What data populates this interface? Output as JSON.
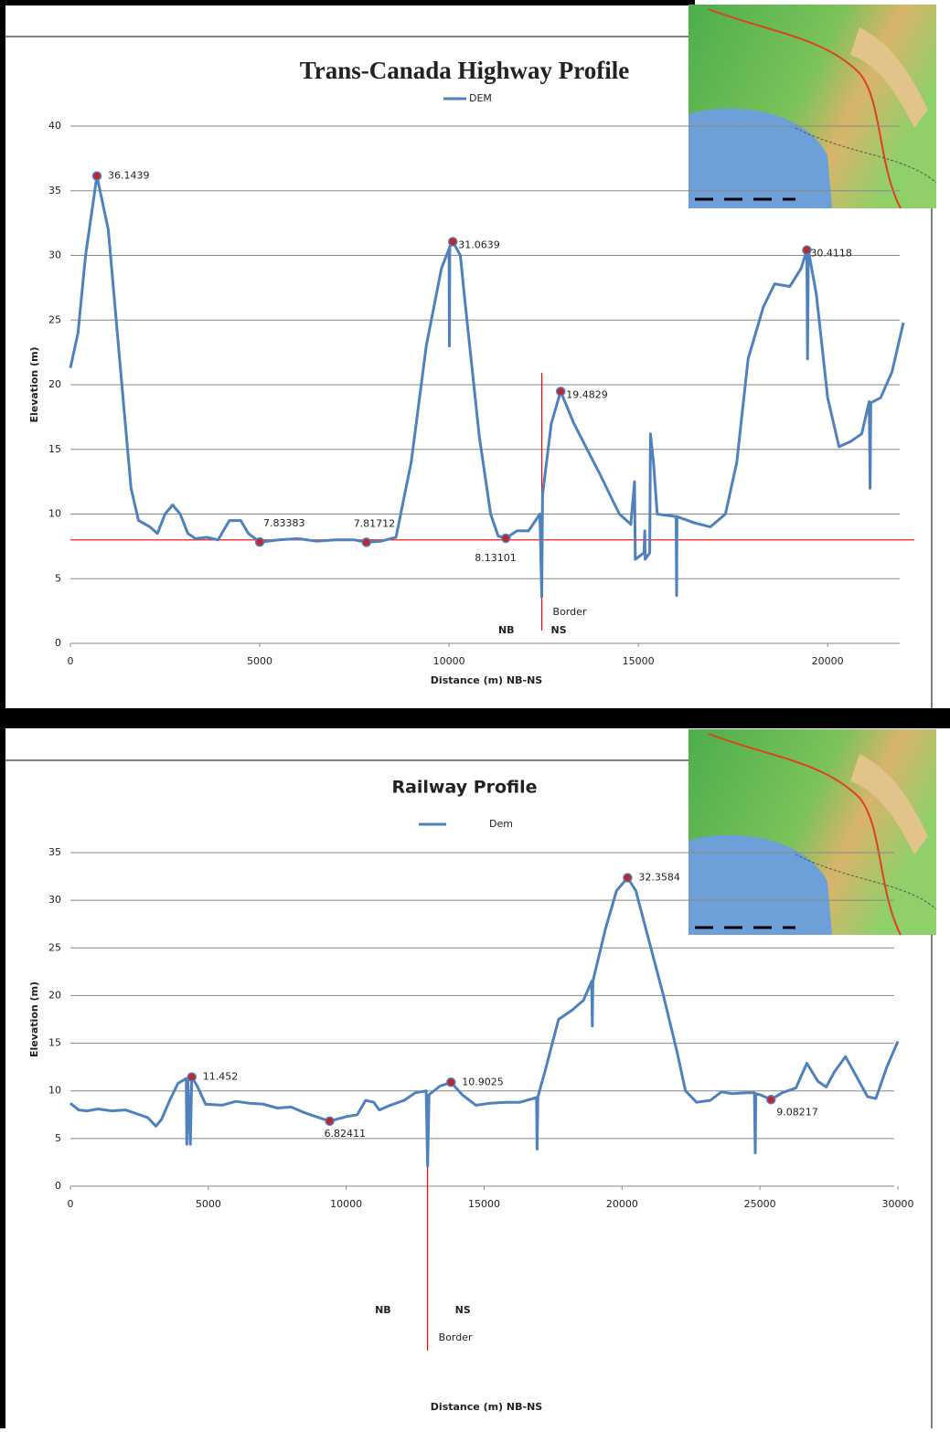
{
  "chart_data": [
    {
      "type": "line",
      "title": "Trans-Canada Highway Profile",
      "x_label": "Distance (m) NB-NS",
      "y_label": "Elevation (m)",
      "xlim": [
        0,
        22000
      ],
      "xticks": [
        0,
        5000,
        10000,
        15000,
        20000
      ],
      "ylim": [
        0,
        40
      ],
      "yticks": [
        0,
        5,
        10,
        15,
        20,
        25,
        30,
        35,
        40
      ],
      "grid": true,
      "x": [
        0,
        200,
        400,
        700,
        1000,
        1300,
        1600,
        1800,
        2100,
        2300,
        2500,
        2700,
        2900,
        3100,
        3300,
        3600,
        3900,
        4200,
        4500,
        4700,
        5000,
        5500,
        6000,
        6500,
        7000,
        7500,
        7817,
        8200,
        8600,
        9000,
        9400,
        9800,
        10000,
        10010,
        10020,
        10100,
        10300,
        10400,
        10800,
        11100,
        11300,
        11500,
        11800,
        12100,
        12400,
        12450,
        12470,
        12700,
        12950,
        13300,
        14000,
        14500,
        14800,
        14900,
        14920,
        15150,
        15170,
        15180,
        15300,
        15320,
        15400,
        15500,
        16000,
        16010,
        16020,
        16500,
        16900,
        17300,
        17600,
        17900,
        18300,
        18600,
        19000,
        19300,
        19450,
        19470,
        19490,
        19700,
        20000,
        20300,
        20600,
        20900,
        21100,
        21120,
        21140,
        21400,
        21700,
        22000
      ],
      "series": [
        {
          "name": "DEM",
          "color": "#4f81bd",
          "values": [
            21.3,
            24,
            30,
            36.1439,
            32,
            22,
            12,
            9.5,
            9,
            8.5,
            10,
            10.7,
            10,
            8.5,
            8.1,
            8.2,
            8.0,
            9.5,
            9.5,
            8.5,
            7.83383,
            8,
            8.1,
            7.9,
            8,
            8.0,
            7.81712,
            7.9,
            8.2,
            14,
            23,
            29,
            30.5,
            23,
            30.7,
            31.0639,
            30,
            27,
            16,
            10,
            8.3,
            8.13101,
            8.7,
            8.7,
            10,
            3.6,
            11.5,
            17,
            19.4829,
            17,
            13,
            10,
            9.2,
            12.5,
            6.5,
            7,
            8.7,
            6.5,
            7,
            16.2,
            14,
            10,
            9.8,
            3.7,
            9.8,
            9.3,
            9,
            10,
            14,
            22,
            26,
            27.8,
            27.6,
            29,
            30.4118,
            22,
            30.4,
            27,
            19,
            15.2,
            15.6,
            16.2,
            18.7,
            12,
            18.6,
            19,
            21,
            24.8
          ]
        }
      ],
      "points": [
        {
          "x": 700,
          "y": 36.1439
        },
        {
          "x": 10100,
          "y": 31.0639
        },
        {
          "x": 19450,
          "y": 30.4118
        },
        {
          "x": 12950,
          "y": 19.4829
        },
        {
          "x": 5000,
          "y": 7.83383
        },
        {
          "x": 7817,
          "y": 7.81712
        },
        {
          "x": 11500,
          "y": 8.13101
        }
      ],
      "reference_lines": [
        {
          "axis": "y",
          "value": 8,
          "color": "#ff0000"
        },
        {
          "axis": "x",
          "value": 12450,
          "color": "#ff0000",
          "label": "Border"
        }
      ],
      "side_labels": [
        "NB",
        "NS"
      ]
    },
    {
      "type": "line",
      "title": "Railway Profile",
      "x_label": "Distance (m) NB-NS",
      "y_label": "Elevation (m)",
      "xlim": [
        0,
        30000
      ],
      "xticks": [
        0,
        5000,
        10000,
        15000,
        20000,
        25000,
        30000
      ],
      "ylim": [
        0,
        35
      ],
      "yticks": [
        0,
        5,
        10,
        15,
        20,
        25,
        30,
        35
      ],
      "grid": true,
      "x": [
        0,
        300,
        600,
        1000,
        1500,
        2000,
        2400,
        2800,
        3100,
        3300,
        3600,
        3900,
        4200,
        4220,
        4260,
        4350,
        4400,
        4600,
        4900,
        5500,
        6000,
        6500,
        7000,
        7500,
        8000,
        8500,
        9000,
        9400,
        10000,
        10400,
        10700,
        11000,
        11200,
        11600,
        12100,
        12500,
        12900,
        12950,
        13000,
        13400,
        13800,
        14200,
        14700,
        15200,
        15800,
        16300,
        16900,
        16920,
        16950,
        17200,
        17700,
        18200,
        18600,
        18900,
        18920,
        18940,
        19400,
        19800,
        20200,
        20500,
        21000,
        21500,
        22000,
        22300,
        22700,
        23200,
        23600,
        24000,
        24500,
        24800,
        24830,
        24850,
        25000,
        25400,
        25800,
        26300,
        26700,
        27100,
        27400,
        27700,
        28100,
        28500,
        28900,
        29200,
        29600,
        30000
      ],
      "series": [
        {
          "name": "Dem",
          "color": "#4f81bd",
          "values": [
            8.7,
            8,
            7.9,
            8.1,
            7.9,
            8,
            7.6,
            7.2,
            6.3,
            7,
            9,
            10.8,
            11.3,
            4.4,
            11.2,
            4.4,
            11.452,
            10.5,
            8.6,
            8.5,
            8.9,
            8.7,
            8.6,
            8.2,
            8.3,
            7.7,
            7.2,
            6.82411,
            7.3,
            7.5,
            9,
            8.8,
            8,
            8.5,
            9,
            9.8,
            10,
            2.1,
            9.6,
            10.5,
            10.9025,
            9.6,
            8.5,
            8.7,
            8.8,
            8.8,
            9.3,
            3.9,
            9.4,
            12,
            17.5,
            18.5,
            19.5,
            21.5,
            16.8,
            21.5,
            27,
            31,
            32.3584,
            31,
            25.5,
            20,
            14,
            10,
            8.8,
            9,
            9.9,
            9.7,
            9.8,
            9.8,
            3.5,
            9.7,
            9.6,
            9.08217,
            9.8,
            10.3,
            12.9,
            11,
            10.4,
            12,
            13.6,
            11.5,
            9.4,
            9.2,
            12.5,
            15.2
          ]
        }
      ],
      "points": [
        {
          "x": 4400,
          "y": 11.452
        },
        {
          "x": 13800,
          "y": 10.9025
        },
        {
          "x": 20200,
          "y": 32.3584
        },
        {
          "x": 9400,
          "y": 6.82411
        },
        {
          "x": 25400,
          "y": 9.08217
        }
      ],
      "reference_lines": [
        {
          "axis": "x",
          "value": 12950,
          "color": "#ff0000",
          "label": "Border"
        }
      ],
      "side_labels": [
        "NB",
        "NS"
      ]
    }
  ]
}
